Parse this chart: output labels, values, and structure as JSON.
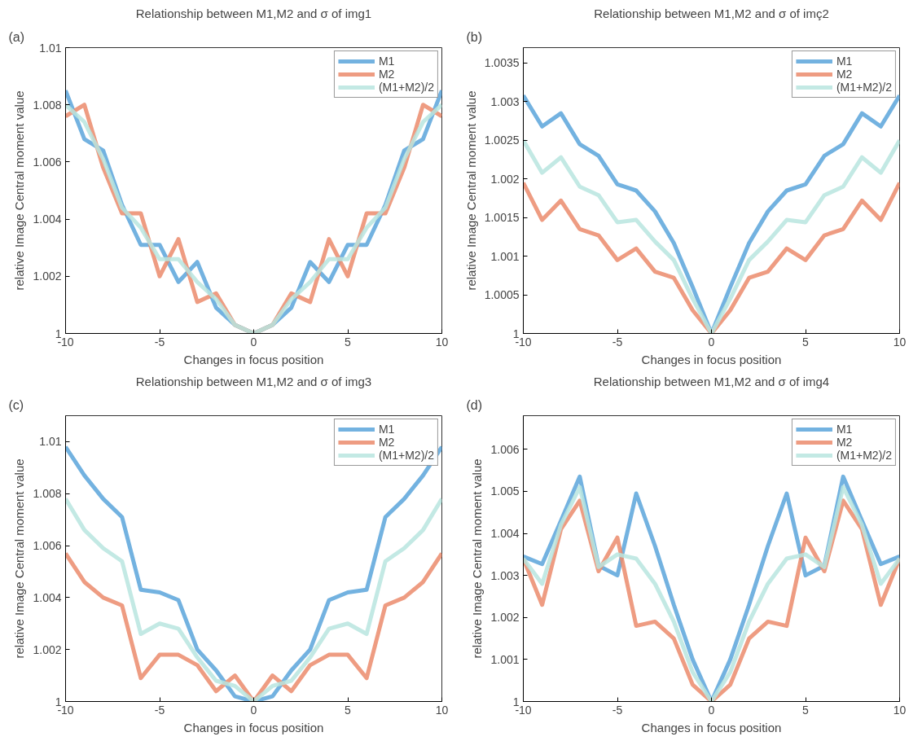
{
  "chart_data": [
    {
      "type": "line",
      "title": "Relationship between M1,M2 and σ of img1",
      "xlabel": "Changes in focus position",
      "ylabel": "relative Image Central moment value",
      "annotations": [
        "(a)"
      ],
      "x": [
        -10,
        -9,
        -8,
        -7,
        -6,
        -5,
        -4,
        -3,
        -2,
        -1,
        0,
        1,
        2,
        3,
        4,
        5,
        6,
        7,
        8,
        9,
        10
      ],
      "xlim": [
        -10,
        10
      ],
      "xticks": [
        -10,
        -5,
        0,
        5,
        10
      ],
      "ylim": [
        1,
        1.01
      ],
      "yticks": [
        1,
        1.002,
        1.004,
        1.006,
        1.008,
        1.01
      ],
      "grid": false,
      "legend": "top right",
      "line_style": "solid",
      "marker": "none",
      "series": [
        {
          "name": "M1",
          "color": "#5aa5db",
          "values": [
            1.0085,
            1.0068,
            1.0064,
            1.0045,
            1.0031,
            1.0031,
            1.0018,
            1.0025,
            1.0009,
            1.0003,
            1.0,
            1.0003,
            1.0009,
            1.0025,
            1.0018,
            1.0031,
            1.0031,
            1.0045,
            1.0064,
            1.0068,
            1.0085
          ]
        },
        {
          "name": "M2",
          "color": "#eb8b6c",
          "values": [
            1.0076,
            1.008,
            1.0058,
            1.0042,
            1.0042,
            1.002,
            1.0033,
            1.0011,
            1.0014,
            1.0003,
            1.0,
            1.0003,
            1.0014,
            1.0011,
            1.0033,
            1.002,
            1.0042,
            1.0042,
            1.0058,
            1.008,
            1.0076
          ]
        },
        {
          "name": "(M1+M2)/2",
          "color": "#b8e5df",
          "values": [
            1.008,
            1.0074,
            1.0061,
            1.0044,
            1.0037,
            1.0026,
            1.0026,
            1.0018,
            1.0012,
            1.0003,
            1.0,
            1.0003,
            1.0012,
            1.0018,
            1.0026,
            1.0026,
            1.0037,
            1.0044,
            1.0061,
            1.0074,
            1.008
          ]
        }
      ]
    },
    {
      "type": "line",
      "title": "Relationship between M1,M2 and σ of imç2",
      "xlabel": "Changes in focus position",
      "ylabel": "relative Image Central moment value",
      "annotations": [
        "(b)"
      ],
      "x": [
        -10,
        -9,
        -8,
        -7,
        -6,
        -5,
        -4,
        -3,
        -2,
        -1,
        0,
        1,
        2,
        3,
        4,
        5,
        6,
        7,
        8,
        9,
        10
      ],
      "xlim": [
        -10,
        10
      ],
      "xticks": [
        -10,
        -5,
        0,
        5,
        10
      ],
      "ylim": [
        1,
        1.0037
      ],
      "yticks": [
        1,
        1.0005,
        1.001,
        1.0015,
        1.002,
        1.0025,
        1.003,
        1.0035
      ],
      "grid": false,
      "legend": "top right",
      "line_style": "solid",
      "marker": "none",
      "series": [
        {
          "name": "M1",
          "color": "#5aa5db",
          "values": [
            1.00308,
            1.00268,
            1.00285,
            1.00245,
            1.0023,
            1.00193,
            1.00185,
            1.00158,
            1.00117,
            1.0006,
            1.0,
            1.0006,
            1.00117,
            1.00158,
            1.00185,
            1.00193,
            1.0023,
            1.00245,
            1.00285,
            1.00268,
            1.00308
          ]
        },
        {
          "name": "M2",
          "color": "#eb8b6c",
          "values": [
            1.00195,
            1.00147,
            1.00172,
            1.00135,
            1.00127,
            1.00095,
            1.0011,
            1.0008,
            1.00072,
            1.0003,
            1.0,
            1.0003,
            1.00072,
            1.0008,
            1.0011,
            1.00095,
            1.00127,
            1.00135,
            1.00172,
            1.00147,
            1.00195
          ]
        },
        {
          "name": "(M1+M2)/2",
          "color": "#b8e5df",
          "values": [
            1.0025,
            1.00208,
            1.00228,
            1.0019,
            1.00179,
            1.00144,
            1.00147,
            1.00119,
            1.00095,
            1.00045,
            1.0,
            1.00045,
            1.00095,
            1.00119,
            1.00147,
            1.00144,
            1.00179,
            1.0019,
            1.00228,
            1.00208,
            1.0025
          ]
        }
      ]
    },
    {
      "type": "line",
      "title": "Relationship between M1,M2 and σ of img3",
      "xlabel": "Changes in focus position",
      "ylabel": "relative Image Central moment value",
      "annotations": [
        "(c)"
      ],
      "x": [
        -10,
        -9,
        -8,
        -7,
        -6,
        -5,
        -4,
        -3,
        -2,
        -1,
        0,
        1,
        2,
        3,
        4,
        5,
        6,
        7,
        8,
        9,
        10
      ],
      "xlim": [
        -10,
        10
      ],
      "xticks": [
        -10,
        -5,
        0,
        5,
        10
      ],
      "ylim": [
        1,
        1.011
      ],
      "yticks": [
        1,
        1.002,
        1.004,
        1.006,
        1.008,
        1.01
      ],
      "grid": false,
      "legend": "top right",
      "line_style": "solid",
      "marker": "none",
      "series": [
        {
          "name": "M1",
          "color": "#5aa5db",
          "values": [
            1.0098,
            1.0087,
            1.0078,
            1.0071,
            1.0043,
            1.0042,
            1.0039,
            1.002,
            1.0012,
            1.0002,
            1.0,
            1.0002,
            1.0012,
            1.002,
            1.0039,
            1.0042,
            1.0043,
            1.0071,
            1.0078,
            1.0087,
            1.0098
          ]
        },
        {
          "name": "M2",
          "color": "#eb8b6c",
          "values": [
            1.0057,
            1.0046,
            1.004,
            1.0037,
            1.0009,
            1.0018,
            1.0018,
            1.0014,
            1.0004,
            1.001,
            1.0,
            1.001,
            1.0004,
            1.0014,
            1.0018,
            1.0018,
            1.0009,
            1.0037,
            1.004,
            1.0046,
            1.0057
          ]
        },
        {
          "name": "(M1+M2)/2",
          "color": "#b8e5df",
          "values": [
            1.0078,
            1.0066,
            1.0059,
            1.0054,
            1.0026,
            1.003,
            1.0028,
            1.0017,
            1.0008,
            1.0006,
            1.0,
            1.0006,
            1.0008,
            1.0017,
            1.0028,
            1.003,
            1.0026,
            1.0054,
            1.0059,
            1.0066,
            1.0078
          ]
        }
      ]
    },
    {
      "type": "line",
      "title": "Relationship between M1,M2 and σ of img4",
      "xlabel": "Changes in focus position",
      "ylabel": "relative Image Central moment value",
      "annotations": [
        "(d)"
      ],
      "x": [
        -10,
        -9,
        -8,
        -7,
        -6,
        -5,
        -4,
        -3,
        -2,
        -1,
        0,
        1,
        2,
        3,
        4,
        5,
        6,
        7,
        8,
        9,
        10
      ],
      "xlim": [
        -10,
        10
      ],
      "xticks": [
        -10,
        -5,
        0,
        5,
        10
      ],
      "ylim": [
        1,
        1.0068
      ],
      "yticks": [
        1,
        1.001,
        1.002,
        1.003,
        1.004,
        1.005,
        1.006
      ],
      "grid": false,
      "legend": "top right",
      "line_style": "solid",
      "marker": "none",
      "series": [
        {
          "name": "M1",
          "color": "#5aa5db",
          "values": [
            1.00345,
            1.00327,
            1.0043,
            1.00535,
            1.00323,
            1.003,
            1.00495,
            1.0037,
            1.0023,
            1.001,
            1.0,
            1.001,
            1.0023,
            1.0037,
            1.00495,
            1.003,
            1.00323,
            1.00535,
            1.0043,
            1.00327,
            1.00345
          ]
        },
        {
          "name": "M2",
          "color": "#eb8b6c",
          "values": [
            1.0034,
            1.0023,
            1.0041,
            1.00478,
            1.0031,
            1.0039,
            1.0018,
            1.0019,
            1.0015,
            1.0004,
            1.0,
            1.0004,
            1.0015,
            1.0019,
            1.0018,
            1.0039,
            1.0031,
            1.00478,
            1.0041,
            1.0023,
            1.0034
          ]
        },
        {
          "name": "(M1+M2)/2",
          "color": "#b8e5df",
          "values": [
            1.0034,
            1.0028,
            1.0042,
            1.0051,
            1.0032,
            1.0035,
            1.0034,
            1.0028,
            1.0019,
            1.0007,
            1.0,
            1.0007,
            1.0019,
            1.0028,
            1.0034,
            1.0035,
            1.0032,
            1.0051,
            1.0042,
            1.0028,
            1.0034
          ]
        }
      ]
    }
  ]
}
